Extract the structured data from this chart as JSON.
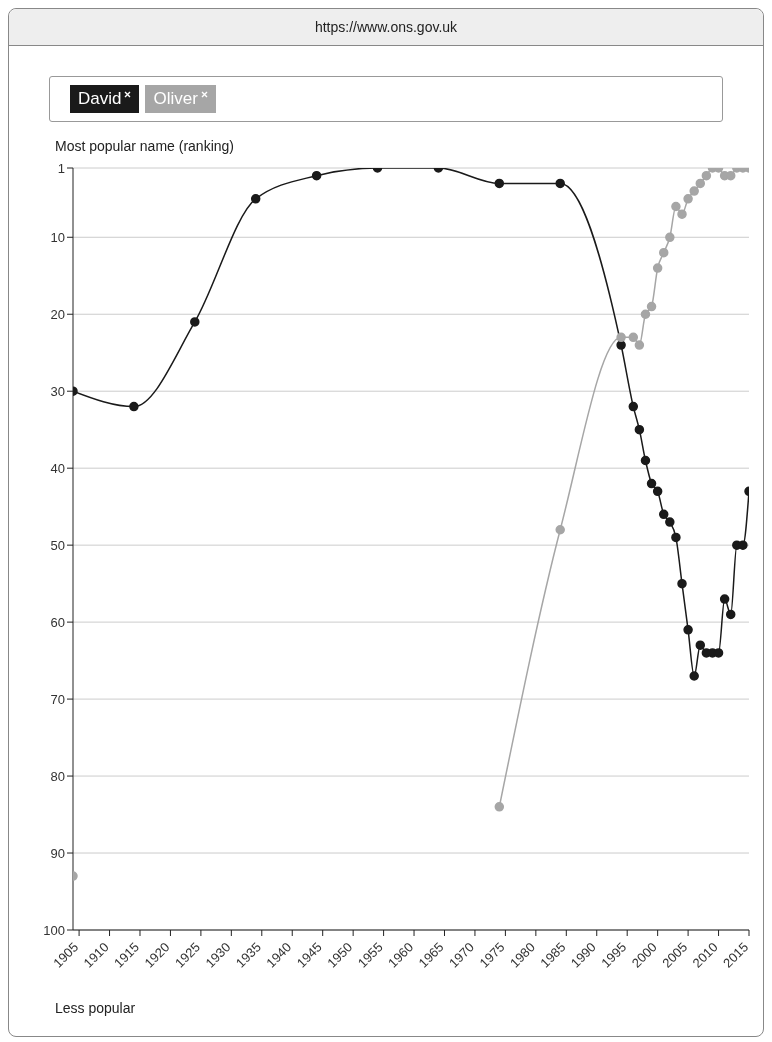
{
  "chart_data": {
    "type": "line",
    "ylabel": "Most popular name (ranking)",
    "annotations": [
      "https://www.ons.gov.uk",
      "Less popular"
    ],
    "x": [
      1904,
      1914,
      1924,
      1934,
      1944,
      1954,
      1964,
      1974,
      1984,
      1994,
      1996,
      1997,
      1998,
      1999,
      2000,
      2001,
      2002,
      2003,
      2004,
      2005,
      2006,
      2007,
      2008,
      2009,
      2010,
      2011,
      2012,
      2013,
      2014,
      2015
    ],
    "series": [
      {
        "name": "David",
        "color": "#1a1a1a",
        "values": [
          30,
          32,
          21,
          5,
          2,
          1,
          1,
          3,
          3,
          24,
          32,
          35,
          39,
          42,
          43,
          46,
          47,
          49,
          55,
          61,
          67,
          63,
          64,
          64,
          64,
          57,
          59,
          50,
          50,
          43
        ]
      },
      {
        "name": "Oliver",
        "color": "#a6a6a6",
        "values": [
          93,
          null,
          null,
          null,
          null,
          null,
          null,
          84,
          48,
          23,
          23,
          24,
          20,
          19,
          14,
          12,
          10,
          6,
          7,
          5,
          4,
          3,
          2,
          1,
          1,
          2,
          2,
          1,
          1,
          1
        ]
      }
    ],
    "xlim": [
      1904,
      2015
    ],
    "xticks": [
      1905,
      1910,
      1915,
      1920,
      1925,
      1930,
      1935,
      1940,
      1945,
      1950,
      1955,
      1960,
      1965,
      1970,
      1975,
      1980,
      1985,
      1990,
      1995,
      2000,
      2005,
      2010,
      2015
    ],
    "ylim": [
      100,
      1
    ],
    "yticks": [
      1,
      10,
      20,
      30,
      40,
      50,
      60,
      70,
      80,
      90,
      100
    ],
    "grid": "y",
    "legend": "top left",
    "marker": "circle",
    "line_style": "solid"
  }
}
